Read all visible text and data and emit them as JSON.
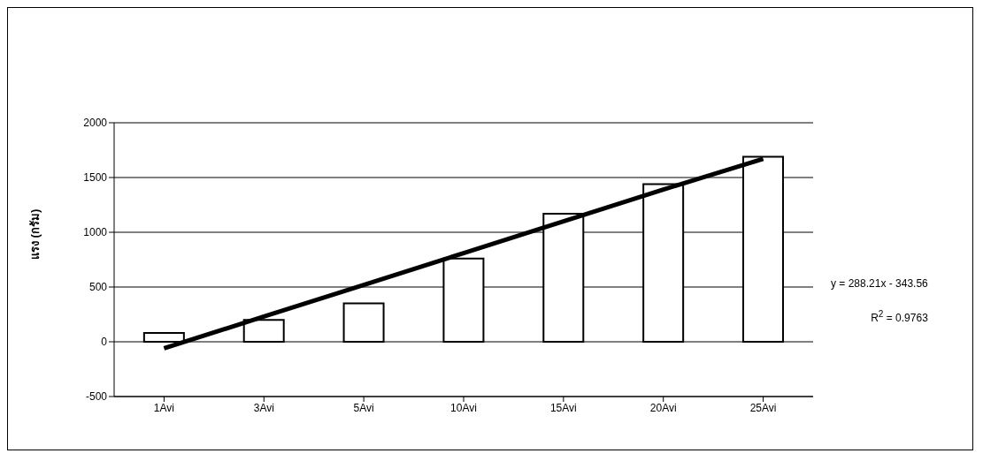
{
  "chart_data": {
    "type": "bar",
    "ylabel": "แรง (กรัม)",
    "categories": [
      "1Avi",
      "3Avi",
      "5Avi",
      "10Avi",
      "15Avi",
      "20Avi",
      "25Avi"
    ],
    "series": [
      {
        "color": "#ffffff",
        "values": [
          80,
          200,
          350,
          760,
          1170,
          1440,
          1690
        ]
      },
      {
        "type": "line",
        "color": "#000000",
        "values": [
          -60,
          230,
          520,
          810,
          1100,
          1390,
          1670
        ]
      }
    ],
    "ylim": [
      -500,
      2000
    ],
    "yticks": [
      -500,
      0,
      500,
      1000,
      1500,
      2000
    ],
    "grid": "y",
    "legend": false,
    "marker": "none",
    "line_style": "solid",
    "annotations": [
      "y = 288.21x - 343.56",
      "R$^{2}$ = 0.9763"
    ]
  }
}
